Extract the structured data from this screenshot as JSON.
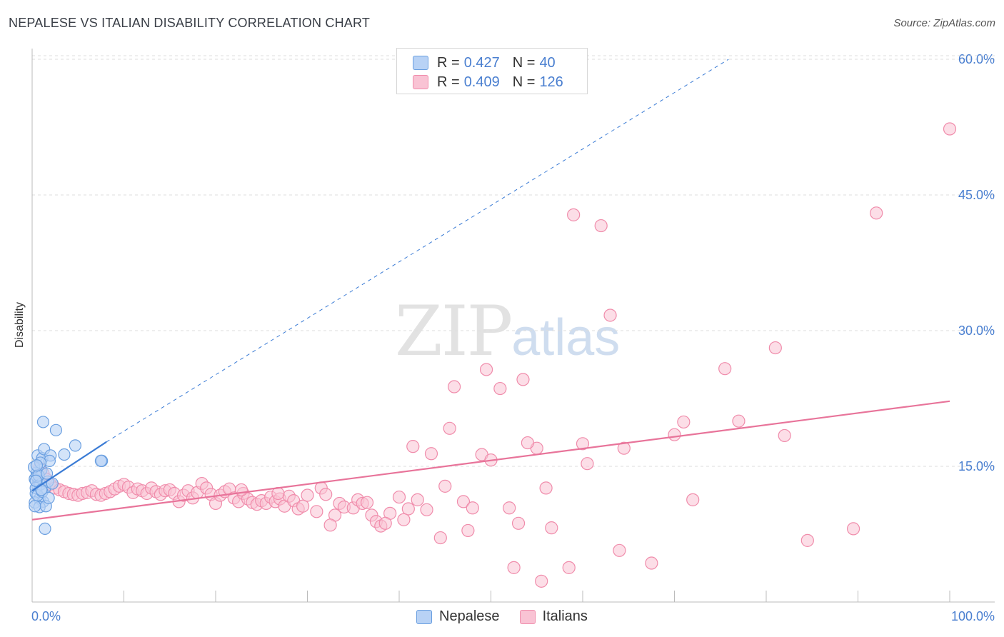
{
  "title": "NEPALESE VS ITALIAN DISABILITY CORRELATION CHART",
  "source": "Source: ZipAtlas.com",
  "watermark": {
    "zip": "ZIP",
    "atlas": "atlas"
  },
  "colors": {
    "nepalese": "#6a9fe0",
    "nepalese_fill": "#b8d2f5",
    "italians": "#f08cab",
    "italians_fill": "#f9c3d4",
    "blue_line": "#3a7bd5",
    "pink_line": "#e8749a",
    "tick_text": "#4a7fd0",
    "grid": "#dddddd"
  },
  "legend": {
    "rows": [
      {
        "r_label": "R = ",
        "r_value": "0.427",
        "n_label": "N = ",
        "n_value": "40"
      },
      {
        "r_label": "R = ",
        "r_value": "0.409",
        "n_label": "N = ",
        "n_value": "126"
      }
    ]
  },
  "bottom_legend": [
    "Nepalese",
    "Italians"
  ],
  "chart_data": {
    "type": "scatter",
    "title": "NEPALESE VS ITALIAN DISABILITY CORRELATION CHART",
    "xlabel": "",
    "ylabel": "Disability",
    "xlim": [
      0,
      100
    ],
    "ylim": [
      0,
      62
    ],
    "x_ticks": [
      "0.0%",
      "100.0%"
    ],
    "y_ticks": [
      {
        "value": 15,
        "label": "15.0%"
      },
      {
        "value": 30,
        "label": "30.0%"
      },
      {
        "value": 45,
        "label": "45.0%"
      },
      {
        "value": 60,
        "label": "60.0%"
      }
    ],
    "grid": "horizontal dashed",
    "legend_position": "top-center",
    "series": [
      {
        "name": "Nepalese",
        "stats": {
          "R": 0.427,
          "N": 40
        },
        "trend": {
          "x0": 0,
          "y0": 12.3,
          "x1": 8.1,
          "y1": 17.7,
          "extended_to": [
            75.9,
            60
          ]
        },
        "points": [
          [
            0.5,
            14.3
          ],
          [
            0.3,
            13.6
          ],
          [
            0.6,
            12.8
          ],
          [
            0.4,
            12.0
          ],
          [
            0.8,
            11.4
          ],
          [
            0.3,
            11.0
          ],
          [
            1.2,
            11.1
          ],
          [
            0.7,
            13.2
          ],
          [
            1.0,
            14.6
          ],
          [
            0.5,
            13.9
          ],
          [
            1.4,
            12.6
          ],
          [
            0.9,
            13.0
          ],
          [
            0.6,
            16.2
          ],
          [
            1.1,
            15.9
          ],
          [
            1.3,
            16.9
          ],
          [
            2.0,
            16.2
          ],
          [
            1.9,
            15.6
          ],
          [
            3.5,
            16.3
          ],
          [
            1.2,
            19.9
          ],
          [
            2.6,
            19.0
          ],
          [
            4.7,
            17.3
          ],
          [
            7.6,
            15.6
          ],
          [
            7.5,
            15.6
          ],
          [
            0.8,
            10.5
          ],
          [
            1.5,
            10.6
          ],
          [
            1.4,
            8.1
          ],
          [
            0.4,
            12.6
          ],
          [
            0.2,
            14.9
          ],
          [
            0.9,
            15.4
          ],
          [
            0.6,
            11.8
          ],
          [
            1.7,
            13.3
          ],
          [
            1.1,
            12.2
          ],
          [
            0.3,
            10.6
          ],
          [
            2.2,
            13.1
          ],
          [
            0.7,
            14.0
          ],
          [
            1.6,
            14.2
          ],
          [
            0.5,
            15.1
          ],
          [
            1.8,
            11.5
          ],
          [
            0.4,
            13.4
          ],
          [
            1.0,
            12.4
          ]
        ]
      },
      {
        "name": "Italians",
        "stats": {
          "R": 0.409,
          "N": 126
        },
        "trend": {
          "x0": 0,
          "y0": 9.1,
          "x1": 100,
          "y1": 22.2
        },
        "points": [
          [
            0.8,
            14.8
          ],
          [
            1.2,
            14.2
          ],
          [
            1.5,
            13.6
          ],
          [
            2.0,
            13.0
          ],
          [
            2.5,
            12.6
          ],
          [
            3.0,
            12.4
          ],
          [
            3.5,
            12.2
          ],
          [
            4.0,
            12.0
          ],
          [
            4.5,
            11.9
          ],
          [
            5.0,
            11.8
          ],
          [
            5.5,
            12.0
          ],
          [
            6.0,
            12.1
          ],
          [
            6.5,
            12.3
          ],
          [
            7.0,
            11.9
          ],
          [
            7.5,
            11.8
          ],
          [
            8.0,
            12.0
          ],
          [
            8.5,
            12.2
          ],
          [
            9.0,
            12.5
          ],
          [
            9.5,
            12.8
          ],
          [
            10.0,
            13.0
          ],
          [
            10.5,
            12.7
          ],
          [
            11.0,
            12.1
          ],
          [
            11.5,
            12.5
          ],
          [
            12.0,
            12.3
          ],
          [
            12.5,
            12.0
          ],
          [
            13.0,
            12.6
          ],
          [
            13.5,
            12.2
          ],
          [
            14.0,
            11.9
          ],
          [
            14.5,
            12.3
          ],
          [
            15.0,
            12.4
          ],
          [
            15.5,
            12.0
          ],
          [
            16.0,
            11.1
          ],
          [
            16.5,
            11.8
          ],
          [
            17.0,
            12.3
          ],
          [
            17.5,
            11.5
          ],
          [
            18.0,
            12.1
          ],
          [
            18.5,
            13.1
          ],
          [
            19.0,
            12.6
          ],
          [
            19.5,
            11.9
          ],
          [
            20.0,
            10.9
          ],
          [
            20.5,
            11.8
          ],
          [
            21.0,
            12.2
          ],
          [
            21.5,
            12.5
          ],
          [
            22.0,
            11.5
          ],
          [
            22.5,
            11.1
          ],
          [
            23.0,
            12.0
          ],
          [
            23.5,
            11.4
          ],
          [
            24.0,
            11.0
          ],
          [
            24.5,
            10.8
          ],
          [
            25.0,
            11.2
          ],
          [
            25.5,
            10.9
          ],
          [
            26.0,
            11.6
          ],
          [
            26.5,
            11.1
          ],
          [
            27.0,
            11.4
          ],
          [
            27.5,
            10.6
          ],
          [
            28.0,
            11.7
          ],
          [
            28.5,
            11.2
          ],
          [
            29.0,
            10.3
          ],
          [
            29.5,
            10.6
          ],
          [
            30.0,
            11.8
          ],
          [
            31.0,
            10.0
          ],
          [
            31.5,
            12.6
          ],
          [
            32.0,
            11.9
          ],
          [
            33.0,
            9.6
          ],
          [
            33.5,
            10.9
          ],
          [
            34.0,
            10.5
          ],
          [
            35.0,
            10.4
          ],
          [
            35.5,
            11.3
          ],
          [
            36.0,
            10.9
          ],
          [
            37.0,
            9.6
          ],
          [
            37.5,
            8.9
          ],
          [
            38.0,
            8.4
          ],
          [
            39.0,
            9.8
          ],
          [
            40.0,
            11.6
          ],
          [
            41.0,
            10.3
          ],
          [
            42.0,
            11.3
          ],
          [
            32.5,
            8.5
          ],
          [
            38.5,
            8.7
          ],
          [
            41.5,
            17.2
          ],
          [
            43.5,
            16.4
          ],
          [
            45.0,
            12.8
          ],
          [
            47.0,
            11.1
          ],
          [
            45.5,
            19.2
          ],
          [
            46.0,
            23.8
          ],
          [
            47.5,
            7.9
          ],
          [
            48.0,
            10.4
          ],
          [
            49.0,
            16.3
          ],
          [
            49.5,
            25.7
          ],
          [
            50.0,
            15.7
          ],
          [
            51.0,
            23.6
          ],
          [
            52.0,
            10.4
          ],
          [
            52.5,
            3.8
          ],
          [
            53.0,
            8.7
          ],
          [
            53.5,
            24.6
          ],
          [
            55.0,
            17.0
          ],
          [
            55.5,
            2.3
          ],
          [
            56.0,
            12.6
          ],
          [
            58.5,
            3.8
          ],
          [
            59.0,
            42.8
          ],
          [
            60.0,
            17.5
          ],
          [
            60.5,
            15.3
          ],
          [
            62.0,
            41.6
          ],
          [
            56.6,
            8.2
          ],
          [
            54.0,
            17.6
          ],
          [
            63.0,
            31.7
          ],
          [
            64.0,
            5.7
          ],
          [
            64.5,
            17.0
          ],
          [
            67.5,
            4.3
          ],
          [
            70.0,
            18.5
          ],
          [
            71.0,
            19.9
          ],
          [
            72.0,
            11.3
          ],
          [
            75.5,
            25.8
          ],
          [
            77.0,
            20.0
          ],
          [
            81.0,
            28.1
          ],
          [
            82.0,
            18.4
          ],
          [
            84.5,
            6.8
          ],
          [
            89.5,
            8.1
          ],
          [
            92.0,
            43.0
          ],
          [
            100.0,
            52.3
          ],
          [
            44.5,
            7.1
          ],
          [
            40.5,
            9.1
          ],
          [
            43.0,
            10.2
          ],
          [
            36.5,
            11.0
          ],
          [
            26.8,
            12.0
          ],
          [
            22.8,
            12.4
          ]
        ]
      }
    ]
  },
  "axes": {
    "ylabel": "Disability",
    "x_left": "0.0%",
    "x_right": "100.0%"
  }
}
